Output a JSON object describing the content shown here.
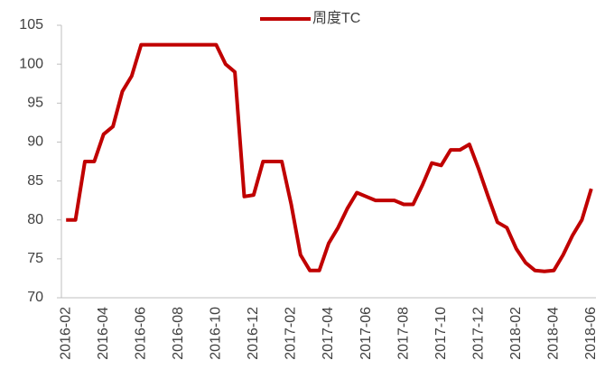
{
  "chart_data": {
    "type": "line",
    "categories": [
      "2016-02",
      null,
      null,
      null,
      "2016-04",
      null,
      null,
      null,
      "2016-06",
      null,
      null,
      null,
      "2016-08",
      null,
      null,
      null,
      "2016-10",
      null,
      null,
      null,
      "2016-12",
      null,
      null,
      null,
      "2017-02",
      null,
      null,
      null,
      "2017-04",
      null,
      null,
      null,
      "2017-06",
      null,
      null,
      null,
      "2017-08",
      null,
      null,
      null,
      "2017-10",
      null,
      null,
      null,
      "2017-12",
      null,
      null,
      null,
      "2018-02",
      null,
      null,
      null,
      "2018-04",
      null,
      null,
      null,
      "2018-06"
    ],
    "series": [
      {
        "name": "周度TC",
        "color": "#c00000",
        "values": [
          80,
          80,
          87.5,
          87.5,
          91,
          92,
          96.5,
          98.5,
          102.5,
          102.5,
          102.5,
          102.5,
          102.5,
          102.5,
          102.5,
          102.5,
          102.5,
          100,
          99,
          83,
          83.2,
          87.5,
          87.5,
          87.5,
          82,
          75.5,
          73.5,
          73.5,
          77,
          79,
          81.5,
          83.5,
          83,
          82.5,
          82.5,
          82.5,
          82,
          82,
          84.5,
          87.3,
          87,
          89,
          89,
          89.7,
          86.5,
          83,
          79.7,
          79,
          76.3,
          74.5,
          73.5,
          73.4,
          73.5,
          75.5,
          78,
          80,
          84
        ]
      }
    ],
    "ylim": [
      70,
      105
    ],
    "yticks": [
      70,
      75,
      80,
      85,
      90,
      95,
      100,
      105
    ],
    "grid": false,
    "legend": "top"
  }
}
